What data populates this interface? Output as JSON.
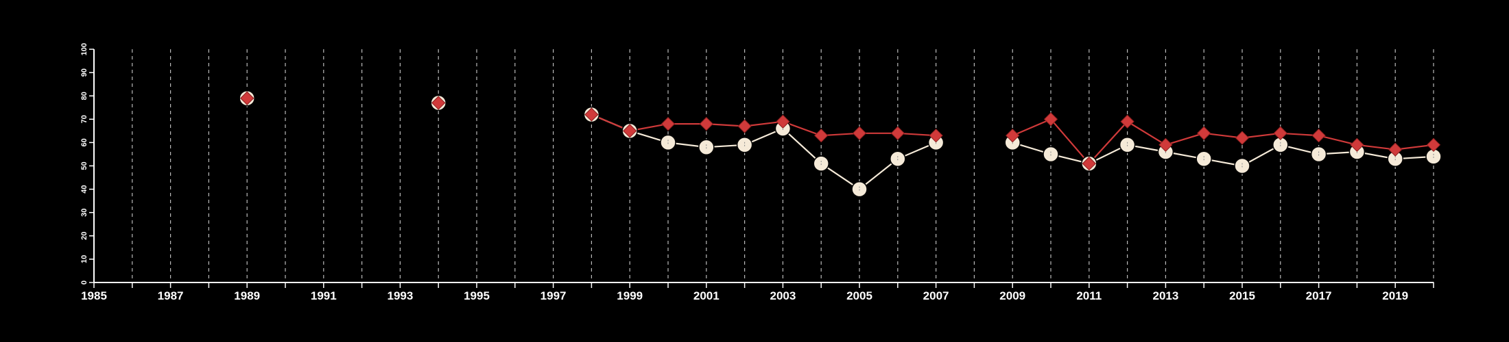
{
  "chart_data": {
    "type": "line",
    "title": "",
    "xlabel": "",
    "ylabel": "",
    "xlim": [
      1985,
      2020
    ],
    "ylim": [
      0,
      100
    ],
    "x_ticks": [
      "1985",
      "1987",
      "1989",
      "1991",
      "1993",
      "1995",
      "1997",
      "1999",
      "2001",
      "2003",
      "2005",
      "2007",
      "2009",
      "2011",
      "2013",
      "2015",
      "2017",
      "2019"
    ],
    "y_ticks": [
      "0",
      "10",
      "20",
      "30",
      "40",
      "50",
      "60",
      "70",
      "80",
      "90",
      "100"
    ],
    "grid": "vertical dashed lines at each year",
    "background": "#000000",
    "series": [
      {
        "marker": "diamond",
        "color": "#d03a3a",
        "points": [
          [
            1989,
            79
          ],
          [
            1994,
            77
          ],
          [
            1998,
            72
          ],
          [
            1999,
            65
          ],
          [
            2000,
            68
          ],
          [
            2001,
            68
          ],
          [
            2002,
            67
          ],
          [
            2003,
            69
          ],
          [
            2004,
            63
          ],
          [
            2005,
            64
          ],
          [
            2006,
            64
          ],
          [
            2007,
            63
          ],
          [
            2009,
            63
          ],
          [
            2010,
            70
          ],
          [
            2011,
            51
          ],
          [
            2012,
            69
          ],
          [
            2013,
            59
          ],
          [
            2014,
            64
          ],
          [
            2015,
            62
          ],
          [
            2016,
            64
          ],
          [
            2017,
            63
          ],
          [
            2018,
            59
          ],
          [
            2019,
            57
          ],
          [
            2020,
            59
          ]
        ]
      },
      {
        "marker": "circle",
        "color": "#f5ead8",
        "points": [
          [
            1989,
            79
          ],
          [
            1994,
            77
          ],
          [
            1998,
            72
          ],
          [
            1999,
            65
          ],
          [
            2000,
            60
          ],
          [
            2001,
            58
          ],
          [
            2002,
            59
          ],
          [
            2003,
            66
          ],
          [
            2004,
            51
          ],
          [
            2005,
            40
          ],
          [
            2006,
            53
          ],
          [
            2007,
            60
          ],
          [
            2009,
            60
          ],
          [
            2010,
            55
          ],
          [
            2011,
            51
          ],
          [
            2012,
            59
          ],
          [
            2013,
            56
          ],
          [
            2014,
            53
          ],
          [
            2015,
            50
          ],
          [
            2016,
            59
          ],
          [
            2017,
            55
          ],
          [
            2018,
            56
          ],
          [
            2019,
            53
          ],
          [
            2020,
            54
          ]
        ]
      }
    ]
  }
}
